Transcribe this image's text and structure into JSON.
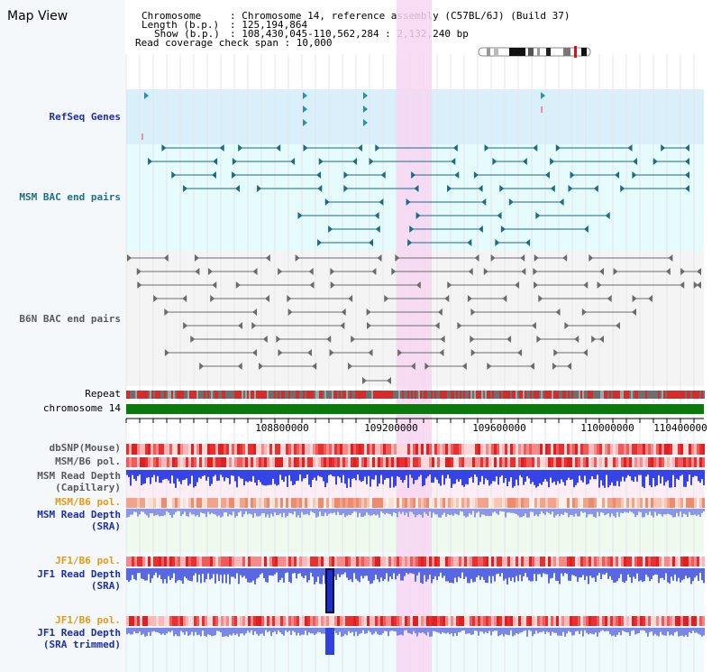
{
  "page": {
    "title": "Map View"
  },
  "header": {
    "chromosome_key": "Chromosome",
    "chromosome_val": ": Chromosome 14, reference assembly (C57BL/6J) (Build 37)",
    "length_key": "Length (b.p.)",
    "length_val": ": 125,194,864",
    "show_key": "Show (b.p.)",
    "show_val": ": 108,430,045-110,562,284 : 2,132,240 bp",
    "coverage_text": "Read coverage check span : 10,000"
  },
  "tracks": {
    "refseq": "RefSeq Genes",
    "msm_bac": "MSM BAC end pairs",
    "b6n_bac": "B6N BAC end pairs",
    "repeat": "Repeat",
    "chromosome": "chromosome 14",
    "dbsnp": "dbSNP(Mouse)",
    "msm_b6_pol_1": "MSM/B6 pol.",
    "msm_depth_cap_1": "MSM Read Depth",
    "msm_depth_cap_2": "(Capillary)",
    "msm_b6_pol_2": "MSM/B6 pol.",
    "msm_depth_sra_1": "MSM Read Depth",
    "msm_depth_sra_2": "(SRA)",
    "jf1_b6_pol_1": "JF1/B6 pol.",
    "jf1_depth_sra_1": "JF1 Read Depth",
    "jf1_depth_sra_2": "(SRA)",
    "jf1_b6_pol_2": "JF1/B6 pol.",
    "jf1_depth_trim_1": "JF1 Read Depth",
    "jf1_depth_trim_2": "(SRA trimmed)"
  },
  "axis": {
    "ticks": [
      "108800000",
      "109200000",
      "109600000",
      "110000000",
      "110400000"
    ]
  },
  "colors": {
    "highlight": "#f7d6f2",
    "refseq_bg": "#d9f0fb",
    "msm_bac_bg": "#e6fbfb",
    "b6n_bac_bg": "#f4f4f4",
    "chromosome_bar": "#0a7a0a",
    "depth_blue": "#2b3ce0",
    "snp_red": "#e52b2b"
  }
}
